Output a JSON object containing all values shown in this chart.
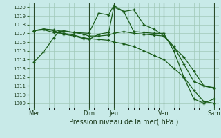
{
  "title": "",
  "xlabel": "Pression niveau de la mer( hPa )",
  "ylabel": "",
  "bg_color": "#c8eae8",
  "grid_color": "#a0c8b8",
  "line_color": "#1a5c1a",
  "ylim": [
    1008.5,
    1020.5
  ],
  "yticks": [
    1009,
    1010,
    1011,
    1012,
    1013,
    1014,
    1015,
    1016,
    1017,
    1018,
    1019,
    1020
  ],
  "xlim": [
    0,
    19
  ],
  "xtick_labels": [
    "Mer",
    "Dim",
    "Jeu",
    "Ven",
    "Sam"
  ],
  "xtick_positions": [
    0.5,
    6,
    8.5,
    13.5,
    18.5
  ],
  "vlines": [
    0.5,
    6.0,
    8.5,
    13.5,
    18.5
  ],
  "series": [
    {
      "x": [
        0.5,
        1.5,
        2.5,
        3.0,
        3.5,
        4.5,
        6.0,
        7.0,
        8.0,
        8.5,
        9.5,
        10.5,
        11.5,
        12.5,
        13.5,
        14.5,
        15.5,
        16.5,
        17.5,
        18.5
      ],
      "y": [
        1013.7,
        1014.9,
        1016.5,
        1017.2,
        1017.3,
        1017.1,
        1017.0,
        1019.3,
        1019.1,
        1020.2,
        1019.5,
        1019.7,
        1018.0,
        1017.5,
        1016.7,
        1015.4,
        1014.3,
        1012.7,
        1011.0,
        1010.7
      ]
    },
    {
      "x": [
        0.5,
        1.5,
        2.5,
        3.5,
        4.5,
        5.5,
        6.0,
        7.0,
        8.0,
        8.5,
        9.5,
        10.5,
        11.5,
        12.5,
        13.5,
        14.5,
        15.5,
        16.5,
        17.5,
        18.5
      ],
      "y": [
        1017.3,
        1017.4,
        1017.1,
        1017.0,
        1016.8,
        1016.5,
        1016.4,
        1016.3,
        1016.2,
        1016.0,
        1015.8,
        1015.5,
        1015.0,
        1014.5,
        1014.0,
        1013.0,
        1012.0,
        1010.5,
        1009.2,
        1009.0
      ]
    },
    {
      "x": [
        0.5,
        1.5,
        2.5,
        3.5,
        4.5,
        5.5,
        6.0,
        7.0,
        8.0,
        8.5,
        9.5,
        10.5,
        11.5,
        12.5,
        13.5,
        14.5,
        15.5,
        16.5,
        17.5,
        18.5
      ],
      "y": [
        1017.3,
        1017.5,
        1017.4,
        1017.2,
        1017.1,
        1016.9,
        1016.7,
        1016.7,
        1016.8,
        1017.0,
        1017.2,
        1017.0,
        1016.9,
        1016.8,
        1016.7,
        1015.5,
        1013.5,
        1011.5,
        1011.0,
        1010.8
      ]
    },
    {
      "x": [
        0.5,
        1.5,
        2.5,
        3.0,
        3.5,
        4.5,
        5.5,
        6.0,
        7.0,
        8.0,
        8.5,
        9.5,
        10.5,
        11.5,
        12.5,
        13.5,
        14.5,
        15.5,
        16.5,
        17.5,
        18.5
      ],
      "y": [
        1017.3,
        1017.5,
        1017.3,
        1017.1,
        1016.9,
        1016.7,
        1016.4,
        1016.3,
        1016.9,
        1017.1,
        1020.0,
        1019.5,
        1017.2,
        1017.1,
        1017.0,
        1017.0,
        1015.0,
        1012.0,
        1009.5,
        1009.0,
        1009.5
      ]
    }
  ]
}
